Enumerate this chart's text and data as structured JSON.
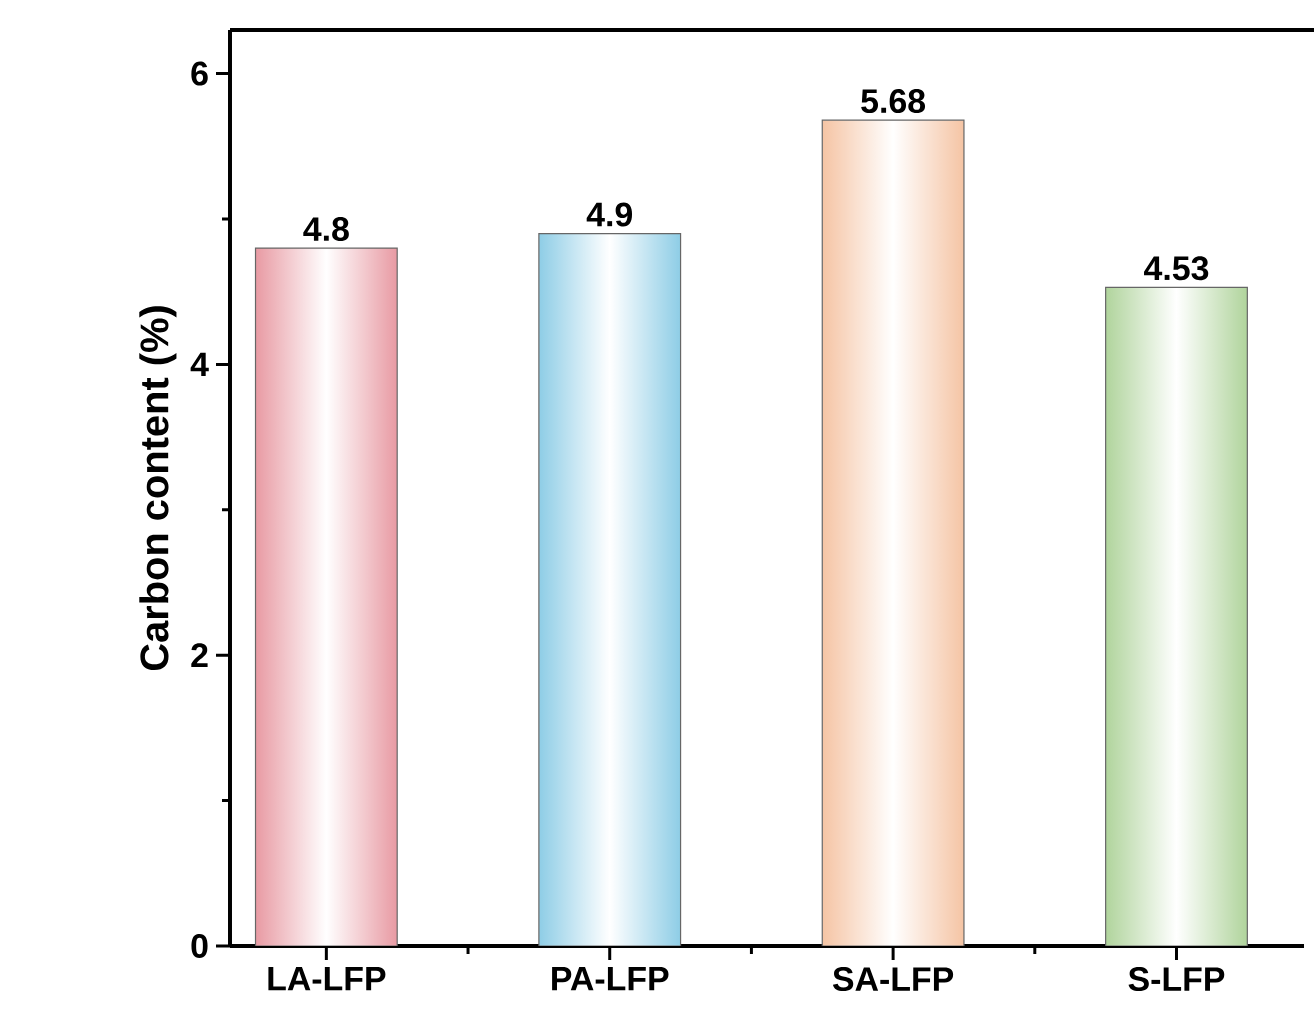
{
  "chart_data": {
    "type": "bar",
    "ylabel": "Carbon content (%)",
    "categories": [
      "LA-LFP",
      "PA-LFP",
      "SA-LFP",
      "S-LFP"
    ],
    "values": [
      4.8,
      4.9,
      5.68,
      4.53
    ],
    "colors": [
      "#e89aa3",
      "#8ecde6",
      "#f5c4a4",
      "#b0d49c"
    ],
    "ylim": [
      0,
      6.3
    ],
    "yticks": [
      0,
      2,
      4,
      6
    ],
    "data_labels": true,
    "grid": false
  }
}
